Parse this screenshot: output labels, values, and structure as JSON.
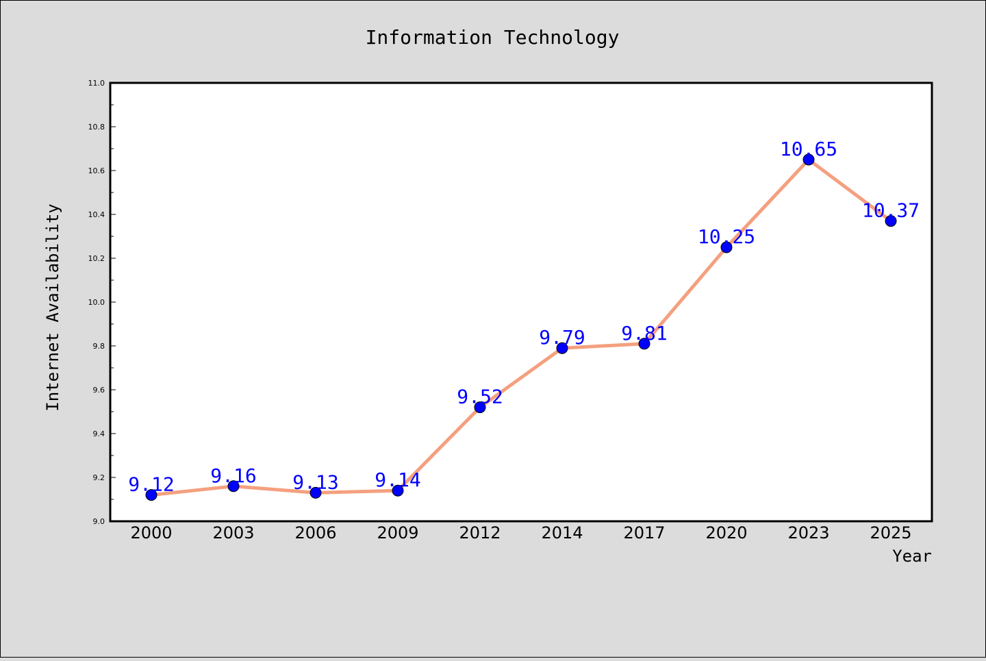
{
  "chart_data": {
    "type": "line",
    "title": "Information Technology",
    "xlabel": "Year",
    "ylabel": "Internet Availability",
    "categories": [
      "2000",
      "2003",
      "2006",
      "2009",
      "2012",
      "2014",
      "2017",
      "2020",
      "2023",
      "2025"
    ],
    "series": [
      {
        "values": [
          9.12,
          9.16,
          9.13,
          9.14,
          9.52,
          9.79,
          9.81,
          10.25,
          10.65,
          10.37
        ],
        "data_labels": [
          "9.12",
          "9.16",
          "9.13",
          "9.14",
          "9.52",
          "9.79",
          "9.81",
          "10.25",
          "10.65",
          "10.37"
        ]
      }
    ],
    "ylim": [
      9.0,
      11.0
    ],
    "y_ticks": [
      "9.0",
      "9.2",
      "9.4",
      "9.6",
      "9.8",
      "10.0",
      "10.2",
      "10.4",
      "10.6",
      "10.8",
      "11.0"
    ],
    "y_tick_values": [
      9.0,
      9.2,
      9.4,
      9.6,
      9.8,
      10.0,
      10.2,
      10.4,
      10.6,
      10.8,
      11.0
    ],
    "y_minor_step": 0.1,
    "grid": false,
    "legend": "none",
    "colors": {
      "background": "#dcdcdc",
      "plot_background": "#ffffff",
      "line": "#f4a07f",
      "marker": "#0000ff",
      "data_label": "#0000ff"
    }
  }
}
